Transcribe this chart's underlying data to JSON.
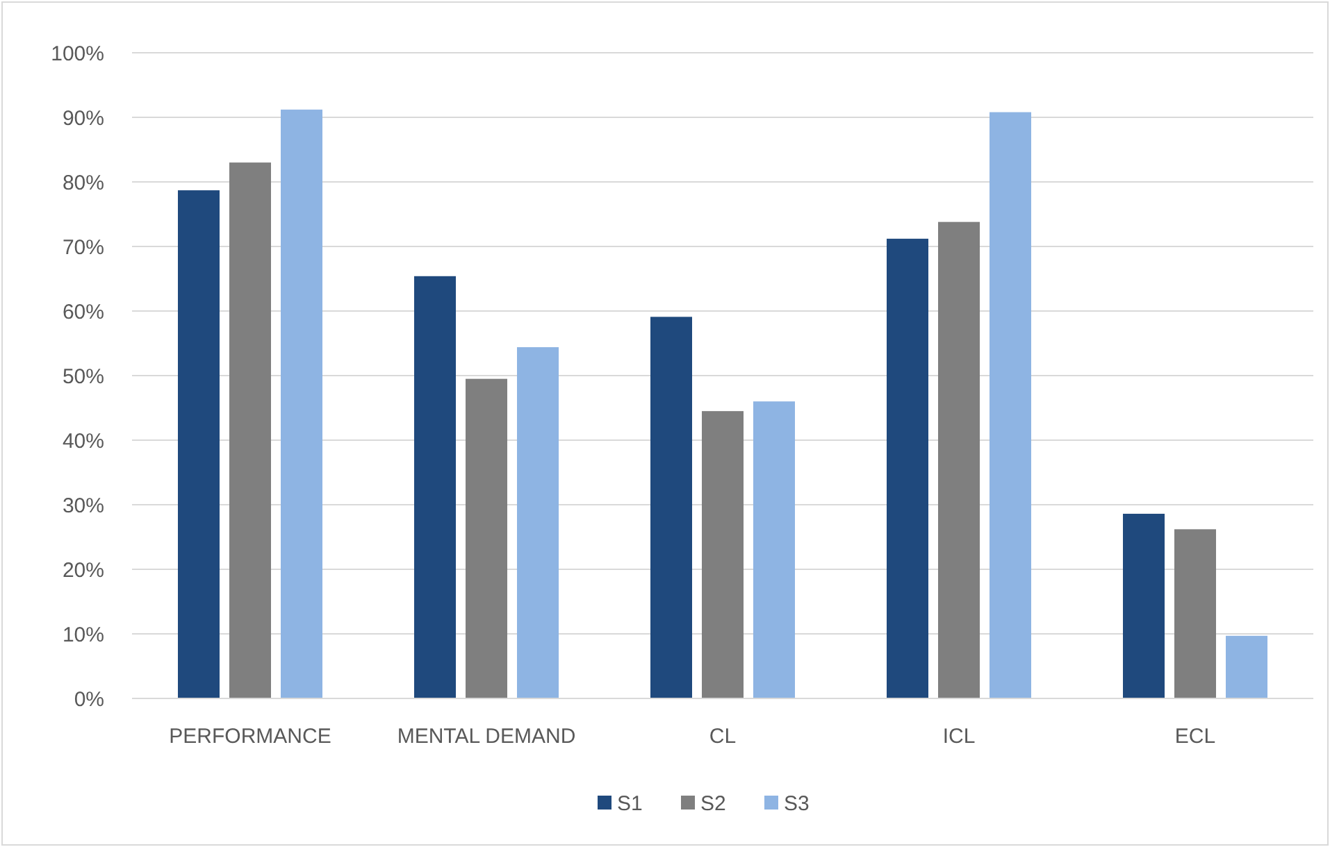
{
  "chart_data": {
    "type": "bar",
    "categories": [
      "PERFORMANCE",
      "MENTAL DEMAND",
      "CL",
      "ICL",
      "ECL"
    ],
    "series": [
      {
        "name": "S1",
        "color": "#1f497d",
        "values": [
          78.7,
          65.4,
          59.1,
          71.2,
          28.6
        ]
      },
      {
        "name": "S2",
        "color": "#7f7f7f",
        "values": [
          83.0,
          49.5,
          44.5,
          73.8,
          26.2
        ]
      },
      {
        "name": "S3",
        "color": "#8eb4e3",
        "values": [
          91.2,
          54.4,
          46.0,
          90.8,
          9.7
        ]
      }
    ],
    "ylim": [
      0,
      100
    ],
    "yticks": [
      {
        "value": 0,
        "label": "0%"
      },
      {
        "value": 10,
        "label": "10%"
      },
      {
        "value": 20,
        "label": "20%"
      },
      {
        "value": 30,
        "label": "30%"
      },
      {
        "value": 40,
        "label": "40%"
      },
      {
        "value": 50,
        "label": "50%"
      },
      {
        "value": 60,
        "label": "60%"
      },
      {
        "value": 70,
        "label": "70%"
      },
      {
        "value": 80,
        "label": "80%"
      },
      {
        "value": 90,
        "label": "90%"
      },
      {
        "value": 100,
        "label": "100%"
      }
    ],
    "grid": "y",
    "legend": "bottom"
  }
}
